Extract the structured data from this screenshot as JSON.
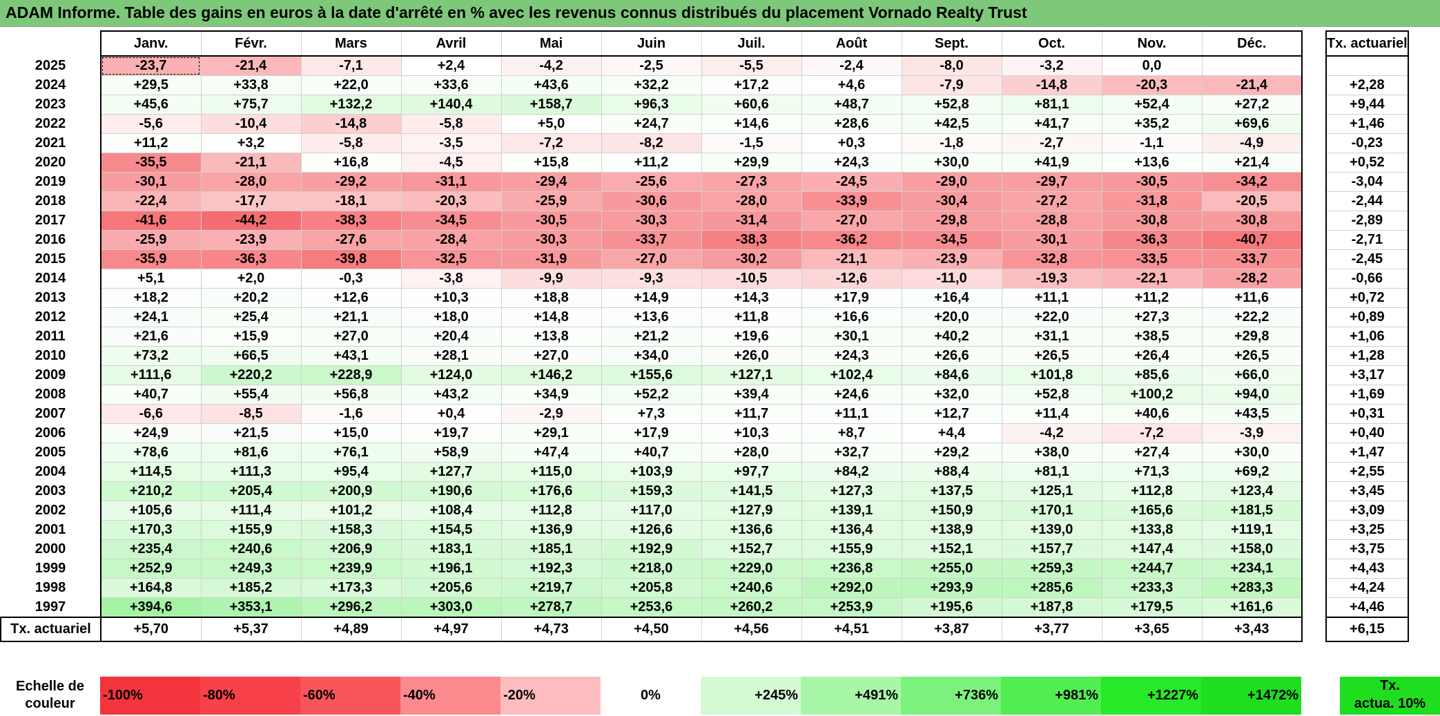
{
  "title": "ADAM Informe. Table des gains en euros à la date d'arrêté en % avec les revenus connus distribués du placement Vornado Realty Trust",
  "months": [
    "Janv.",
    "Févr.",
    "Mars",
    "Avril",
    "Mai",
    "Juin",
    "Juil.",
    "Août",
    "Sept.",
    "Oct.",
    "Nov.",
    "Déc."
  ],
  "annual_header": "Tx. actuariel",
  "rows": [
    {
      "year": "2025",
      "values": [
        "-23,7",
        "-21,4",
        "-7,1",
        "+2,4",
        "-4,2",
        "-2,5",
        "-5,5",
        "-2,4",
        "-8,0",
        "-3,2",
        "0,0",
        ""
      ],
      "annual": ""
    },
    {
      "year": "2024",
      "values": [
        "+29,5",
        "+33,8",
        "+22,0",
        "+33,6",
        "+43,6",
        "+32,2",
        "+17,2",
        "+4,6",
        "-7,9",
        "-14,8",
        "-20,3",
        "-21,4"
      ],
      "annual": "+2,28"
    },
    {
      "year": "2023",
      "values": [
        "+45,6",
        "+75,7",
        "+132,2",
        "+140,4",
        "+158,7",
        "+96,3",
        "+60,6",
        "+48,7",
        "+52,8",
        "+81,1",
        "+52,4",
        "+27,2"
      ],
      "annual": "+9,44"
    },
    {
      "year": "2022",
      "values": [
        "-5,6",
        "-10,4",
        "-14,8",
        "-5,8",
        "+5,0",
        "+24,7",
        "+14,6",
        "+28,6",
        "+42,5",
        "+41,7",
        "+35,2",
        "+69,6"
      ],
      "annual": "+1,46"
    },
    {
      "year": "2021",
      "values": [
        "+11,2",
        "+3,2",
        "-5,8",
        "-3,5",
        "-7,2",
        "-8,2",
        "-1,5",
        "+0,3",
        "-1,8",
        "-2,7",
        "-1,1",
        "-4,9"
      ],
      "annual": "-0,23"
    },
    {
      "year": "2020",
      "values": [
        "-35,5",
        "-21,1",
        "+16,8",
        "-4,5",
        "+15,8",
        "+11,2",
        "+29,9",
        "+24,3",
        "+30,0",
        "+41,9",
        "+13,6",
        "+21,4"
      ],
      "annual": "+0,52"
    },
    {
      "year": "2019",
      "values": [
        "-30,1",
        "-28,0",
        "-29,2",
        "-31,1",
        "-29,4",
        "-25,6",
        "-27,3",
        "-24,5",
        "-29,0",
        "-29,7",
        "-30,5",
        "-34,2"
      ],
      "annual": "-3,04"
    },
    {
      "year": "2018",
      "values": [
        "-22,4",
        "-17,7",
        "-18,1",
        "-20,3",
        "-25,9",
        "-30,6",
        "-28,0",
        "-33,9",
        "-30,4",
        "-27,2",
        "-31,8",
        "-20,5"
      ],
      "annual": "-2,44"
    },
    {
      "year": "2017",
      "values": [
        "-41,6",
        "-44,2",
        "-38,3",
        "-34,5",
        "-30,5",
        "-30,3",
        "-31,4",
        "-27,0",
        "-29,8",
        "-28,8",
        "-30,8",
        "-30,8"
      ],
      "annual": "-2,89"
    },
    {
      "year": "2016",
      "values": [
        "-25,9",
        "-23,9",
        "-27,6",
        "-28,4",
        "-30,3",
        "-33,7",
        "-38,3",
        "-36,2",
        "-34,5",
        "-30,1",
        "-36,3",
        "-40,7"
      ],
      "annual": "-2,71"
    },
    {
      "year": "2015",
      "values": [
        "-35,9",
        "-36,3",
        "-39,8",
        "-32,5",
        "-31,9",
        "-27,0",
        "-30,2",
        "-21,1",
        "-23,9",
        "-32,8",
        "-33,5",
        "-33,7"
      ],
      "annual": "-2,45"
    },
    {
      "year": "2014",
      "values": [
        "+5,1",
        "+2,0",
        "-0,3",
        "-3,8",
        "-9,9",
        "-9,3",
        "-10,5",
        "-12,6",
        "-11,0",
        "-19,3",
        "-22,1",
        "-28,2"
      ],
      "annual": "-0,66"
    },
    {
      "year": "2013",
      "values": [
        "+18,2",
        "+20,2",
        "+12,6",
        "+10,3",
        "+18,8",
        "+14,9",
        "+14,3",
        "+17,9",
        "+16,4",
        "+11,1",
        "+11,2",
        "+11,6"
      ],
      "annual": "+0,72"
    },
    {
      "year": "2012",
      "values": [
        "+24,1",
        "+25,4",
        "+21,1",
        "+18,0",
        "+14,8",
        "+13,6",
        "+11,8",
        "+16,6",
        "+20,0",
        "+22,0",
        "+27,3",
        "+22,2"
      ],
      "annual": "+0,89"
    },
    {
      "year": "2011",
      "values": [
        "+21,6",
        "+15,9",
        "+27,0",
        "+20,4",
        "+13,8",
        "+21,2",
        "+19,6",
        "+30,1",
        "+40,2",
        "+31,1",
        "+38,5",
        "+29,8"
      ],
      "annual": "+1,06"
    },
    {
      "year": "2010",
      "values": [
        "+73,2",
        "+66,5",
        "+43,1",
        "+28,1",
        "+27,0",
        "+34,0",
        "+26,0",
        "+24,3",
        "+26,6",
        "+26,5",
        "+26,4",
        "+26,5"
      ],
      "annual": "+1,28"
    },
    {
      "year": "2009",
      "values": [
        "+111,6",
        "+220,2",
        "+228,9",
        "+124,0",
        "+146,2",
        "+155,6",
        "+127,1",
        "+102,4",
        "+84,6",
        "+101,8",
        "+85,6",
        "+66,0"
      ],
      "annual": "+3,17"
    },
    {
      "year": "2008",
      "values": [
        "+40,7",
        "+55,4",
        "+56,8",
        "+43,2",
        "+34,9",
        "+52,2",
        "+39,4",
        "+24,6",
        "+32,0",
        "+52,8",
        "+100,2",
        "+94,0"
      ],
      "annual": "+1,69"
    },
    {
      "year": "2007",
      "values": [
        "-6,6",
        "-8,5",
        "-1,6",
        "+0,4",
        "-2,9",
        "+7,3",
        "+11,7",
        "+11,1",
        "+12,7",
        "+11,4",
        "+40,6",
        "+43,5"
      ],
      "annual": "+0,31"
    },
    {
      "year": "2006",
      "values": [
        "+24,9",
        "+21,5",
        "+15,0",
        "+19,7",
        "+29,1",
        "+17,9",
        "+10,3",
        "+8,7",
        "+4,4",
        "-4,2",
        "-7,2",
        "-3,9"
      ],
      "annual": "+0,40"
    },
    {
      "year": "2005",
      "values": [
        "+78,6",
        "+81,6",
        "+76,1",
        "+58,9",
        "+47,4",
        "+40,7",
        "+28,0",
        "+32,7",
        "+29,2",
        "+38,0",
        "+27,4",
        "+30,0"
      ],
      "annual": "+1,47"
    },
    {
      "year": "2004",
      "values": [
        "+114,5",
        "+111,3",
        "+95,4",
        "+127,7",
        "+115,0",
        "+103,9",
        "+97,7",
        "+84,2",
        "+88,4",
        "+81,1",
        "+71,3",
        "+69,2"
      ],
      "annual": "+2,55"
    },
    {
      "year": "2003",
      "values": [
        "+210,2",
        "+205,4",
        "+200,9",
        "+190,6",
        "+176,6",
        "+159,3",
        "+141,5",
        "+127,3",
        "+137,5",
        "+125,1",
        "+112,8",
        "+123,4"
      ],
      "annual": "+3,45"
    },
    {
      "year": "2002",
      "values": [
        "+105,6",
        "+111,4",
        "+101,2",
        "+108,4",
        "+112,8",
        "+117,0",
        "+127,9",
        "+139,1",
        "+150,9",
        "+170,1",
        "+165,6",
        "+181,5"
      ],
      "annual": "+3,09"
    },
    {
      "year": "2001",
      "values": [
        "+170,3",
        "+155,9",
        "+158,3",
        "+154,5",
        "+136,9",
        "+126,6",
        "+136,6",
        "+136,4",
        "+138,9",
        "+139,0",
        "+133,8",
        "+119,1"
      ],
      "annual": "+3,25"
    },
    {
      "year": "2000",
      "values": [
        "+235,4",
        "+240,6",
        "+206,9",
        "+183,1",
        "+185,1",
        "+192,9",
        "+152,7",
        "+155,9",
        "+152,1",
        "+157,7",
        "+147,4",
        "+158,0"
      ],
      "annual": "+3,75"
    },
    {
      "year": "1999",
      "values": [
        "+252,9",
        "+249,3",
        "+239,9",
        "+196,1",
        "+192,3",
        "+218,0",
        "+229,0",
        "+236,8",
        "+255,0",
        "+259,3",
        "+244,7",
        "+234,1"
      ],
      "annual": "+4,43"
    },
    {
      "year": "1998",
      "values": [
        "+164,8",
        "+185,2",
        "+173,3",
        "+205,6",
        "+219,7",
        "+205,8",
        "+240,6",
        "+292,0",
        "+293,9",
        "+285,6",
        "+233,3",
        "+283,3"
      ],
      "annual": "+4,24"
    },
    {
      "year": "1997",
      "values": [
        "+394,6",
        "+353,1",
        "+296,2",
        "+303,0",
        "+278,7",
        "+253,6",
        "+260,2",
        "+253,9",
        "+195,6",
        "+187,8",
        "+179,5",
        "+161,6"
      ],
      "annual": "+4,46"
    }
  ],
  "footer": {
    "label": "Tx. actuariel",
    "values": [
      "+5,70",
      "+5,37",
      "+4,89",
      "+4,97",
      "+4,73",
      "+4,50",
      "+4,56",
      "+4,51",
      "+3,87",
      "+3,77",
      "+3,65",
      "+3,43"
    ],
    "annual": "+6,15"
  },
  "scale": {
    "label_line1": "Echelle de",
    "label_line2": "couleur",
    "cells": [
      {
        "text": "-100%",
        "color": "#f4343c",
        "align": "left"
      },
      {
        "text": "-80%",
        "color": "#f7404a",
        "align": "left"
      },
      {
        "text": "-60%",
        "color": "#f8545b",
        "align": "left"
      },
      {
        "text": "-40%",
        "color": "#fb8a8e",
        "align": "left"
      },
      {
        "text": "-20%",
        "color": "#fdbdbf",
        "align": "left"
      },
      {
        "text": "0%",
        "color": "#ffffff",
        "align": "center"
      },
      {
        "text": "+245%",
        "color": "#d4fad4",
        "align": "right"
      },
      {
        "text": "+491%",
        "color": "#a8f6a8",
        "align": "right"
      },
      {
        "text": "+736%",
        "color": "#7cf27c",
        "align": "right"
      },
      {
        "text": "+981%",
        "color": "#51ee51",
        "align": "right"
      },
      {
        "text": "+1227%",
        "color": "#27e927",
        "align": "right"
      },
      {
        "text": "+1472%",
        "color": "#1fdd1f",
        "align": "right"
      }
    ],
    "tx_line1": "Tx.",
    "tx_line2": "actua. 10%"
  },
  "colors": {
    "title_bg": "#7ec87a",
    "neg_full": "#f4343c",
    "pos_full": "#1fdd1f"
  }
}
